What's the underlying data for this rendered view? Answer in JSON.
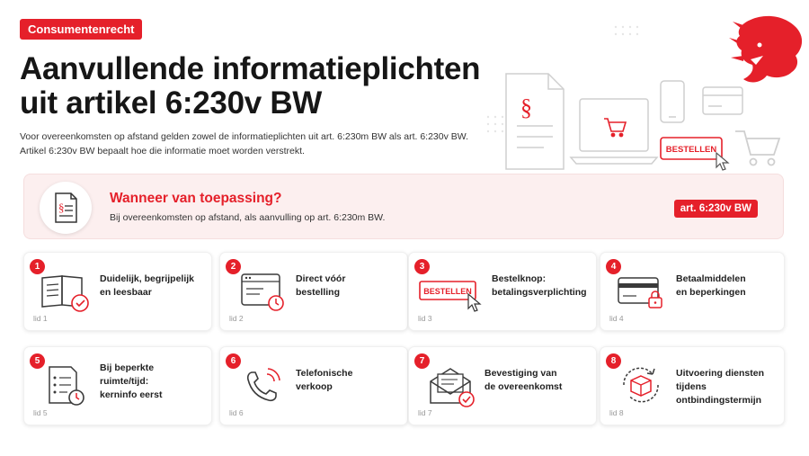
{
  "header": {
    "tag": "Consumentenrecht",
    "title_line1": "Aanvullende informatieplichten",
    "title_line2": "uit artikel 6:230v BW",
    "intro_line1": "Voor overeenkomsten op afstand gelden zowel de informatieplichten uit art. 6:230m BW als art. 6:230v BW.",
    "intro_line2": "Artikel 6:230v BW bepaalt hoe die informatie moet worden verstrekt."
  },
  "hero": {
    "order_button_label": "BESTELLEN",
    "paragraph_symbol": "§"
  },
  "banner": {
    "title": "Wanneer van toepassing?",
    "subtitle": "Bij overeenkomsten op afstand, als aanvulling op art. 6:230m BW.",
    "badge": "art. 6:230v BW"
  },
  "cards": [
    {
      "number": "1",
      "label_line1": "Duidelijk, begrijpelijk",
      "label_line2": "en leesbaar",
      "label_line3": "",
      "lid": "lid 1",
      "icon": "book-check-icon"
    },
    {
      "number": "2",
      "label_line1": "Direct vóór",
      "label_line2": "bestelling",
      "label_line3": "",
      "lid": "lid 2",
      "icon": "browser-clock-icon"
    },
    {
      "number": "3",
      "label_line1": "Bestelknop:",
      "label_line2": "betalingsverplichting",
      "label_line3": "",
      "lid": "lid 3",
      "icon": "order-button-icon",
      "button_label": "BESTELLEN"
    },
    {
      "number": "4",
      "label_line1": "Betaalmiddelen",
      "label_line2": "en beperkingen",
      "label_line3": "",
      "lid": "lid 4",
      "icon": "card-lock-icon"
    },
    {
      "number": "5",
      "label_line1": "Bij beperkte",
      "label_line2": "ruimte/tijd:",
      "label_line3": "kerninfo eerst",
      "lid": "lid 5",
      "icon": "checklist-clock-icon"
    },
    {
      "number": "6",
      "label_line1": "Telefonische",
      "label_line2": "verkoop",
      "label_line3": "",
      "lid": "lid 6",
      "icon": "phone-icon"
    },
    {
      "number": "7",
      "label_line1": "Bevestiging van",
      "label_line2": "de overeenkomst",
      "label_line3": "",
      "lid": "lid 7",
      "icon": "envelope-check-icon"
    },
    {
      "number": "8",
      "label_line1": "Uitvoering diensten",
      "label_line2": "tijdens ontbindingstermijn",
      "label_line3": "",
      "lid": "lid 8",
      "icon": "box-cycle-icon"
    }
  ],
  "colors": {
    "accent": "#e5202a",
    "banner_bg": "#fcefef",
    "icon_stroke": "#3a3a3a"
  }
}
